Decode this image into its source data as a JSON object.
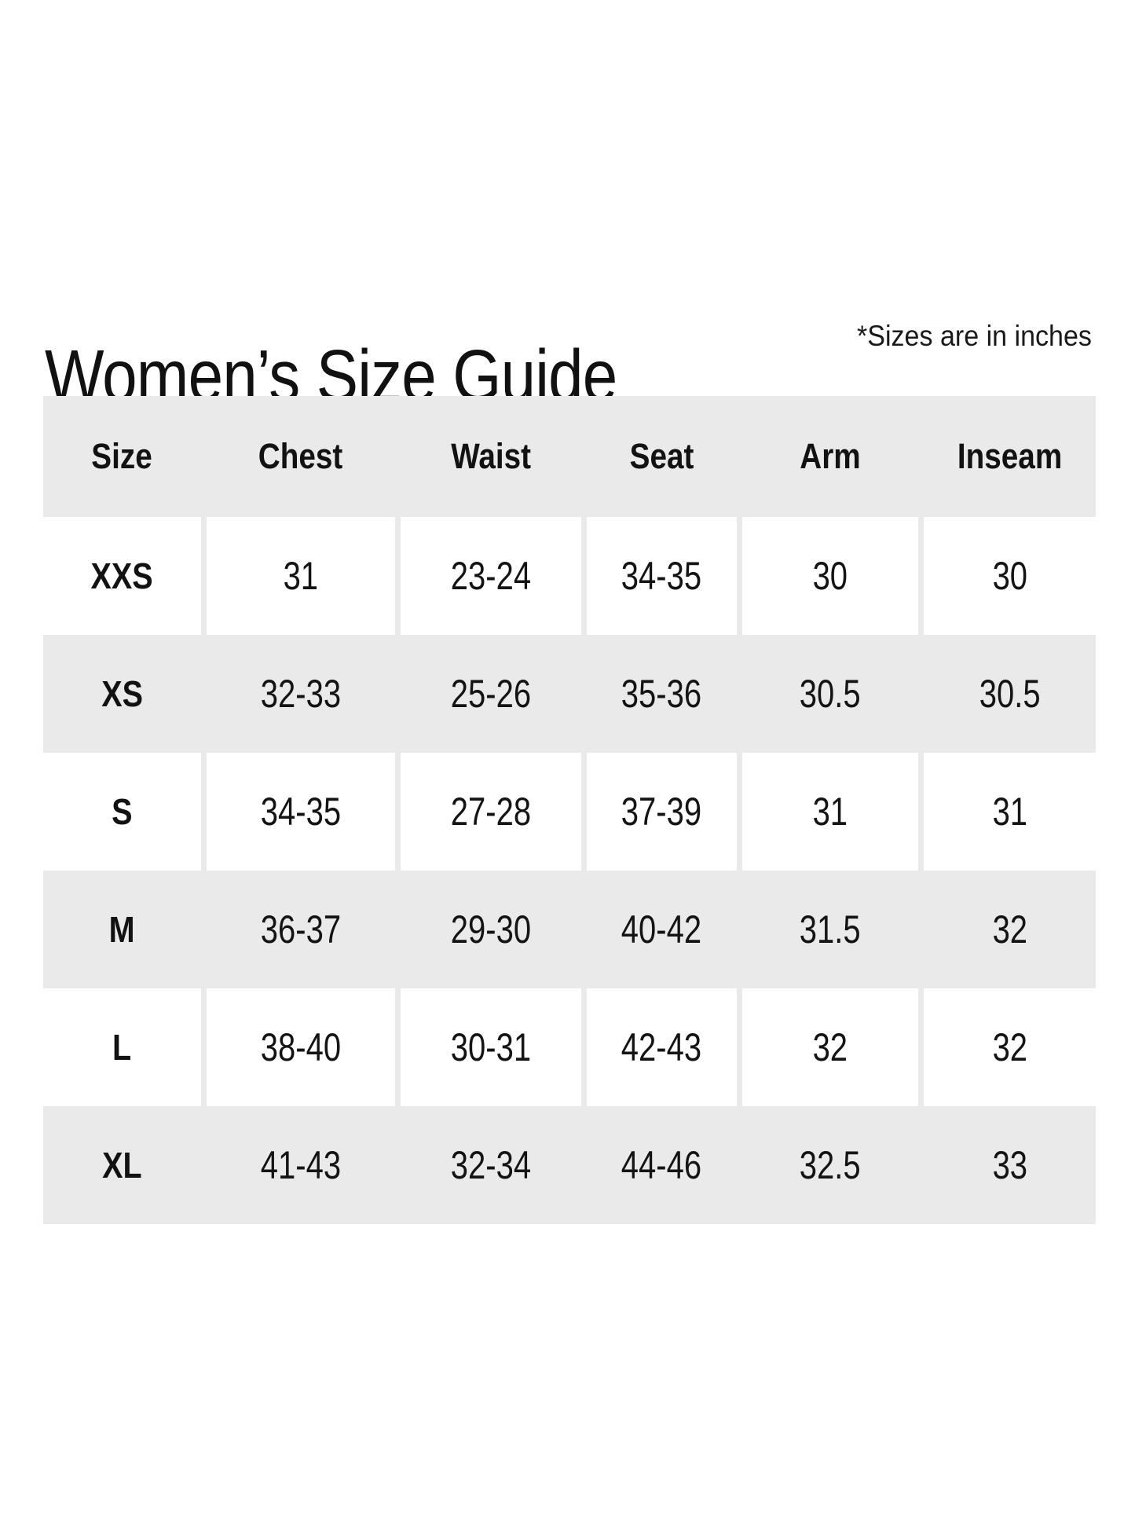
{
  "page": {
    "title": "Women’s Size Guide",
    "note": "*Sizes are in inches"
  },
  "table": {
    "columns": [
      "Size",
      "Chest",
      "Waist",
      "Seat",
      "Arm",
      "Inseam"
    ],
    "rows": [
      {
        "size": "XXS",
        "chest": "31",
        "waist": "23-24",
        "seat": "34-35",
        "arm": "30",
        "inseam": "30"
      },
      {
        "size": "XS",
        "chest": "32-33",
        "waist": "25-26",
        "seat": "35-36",
        "arm": "30.5",
        "inseam": "30.5"
      },
      {
        "size": "S",
        "chest": "34-35",
        "waist": "27-28",
        "seat": "37-39",
        "arm": "31",
        "inseam": "31"
      },
      {
        "size": "M",
        "chest": "36-37",
        "waist": "29-30",
        "seat": "40-42",
        "arm": "31.5",
        "inseam": "32"
      },
      {
        "size": "L",
        "chest": "38-40",
        "waist": "30-31",
        "seat": "42-43",
        "arm": "32",
        "inseam": "32"
      },
      {
        "size": "XL",
        "chest": "41-43",
        "waist": "32-34",
        "seat": "44-46",
        "arm": "32.5",
        "inseam": "33"
      }
    ]
  },
  "colors": {
    "row_shade": "#eaeaea",
    "background": "#ffffff",
    "text": "#121212"
  },
  "chart_data": {
    "type": "table",
    "title": "Women’s Size Guide",
    "note": "*Sizes are in inches",
    "units": "inches",
    "columns": [
      "Size",
      "Chest",
      "Waist",
      "Seat",
      "Arm",
      "Inseam"
    ],
    "rows": [
      [
        "XXS",
        "31",
        "23-24",
        "34-35",
        "30",
        "30"
      ],
      [
        "XS",
        "32-33",
        "25-26",
        "35-36",
        "30.5",
        "30.5"
      ],
      [
        "S",
        "34-35",
        "27-28",
        "37-39",
        "31",
        "31"
      ],
      [
        "M",
        "36-37",
        "29-30",
        "40-42",
        "31.5",
        "32"
      ],
      [
        "L",
        "38-40",
        "30-31",
        "42-43",
        "32",
        "32"
      ],
      [
        "XL",
        "41-43",
        "32-34",
        "44-46",
        "32.5",
        "33"
      ]
    ],
    "layout": {
      "header_shaded": true,
      "row_shading": "alternating starting shaded header, data rows alternate white/shaded",
      "grid": "off"
    }
  }
}
